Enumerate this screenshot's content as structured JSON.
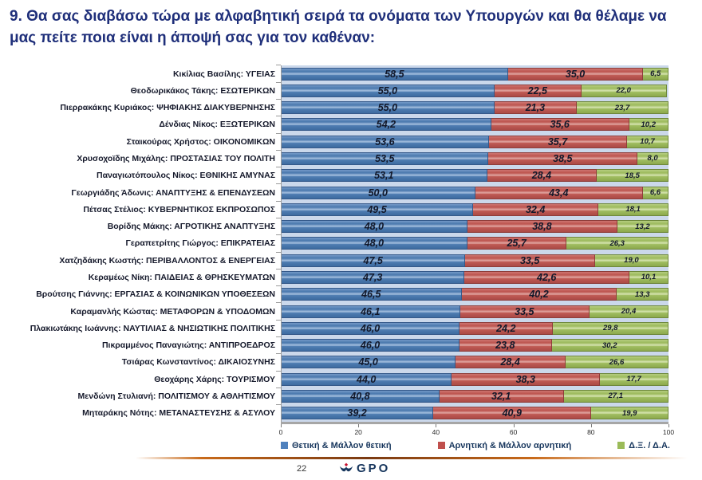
{
  "title": "9. Θα σας διαβάσω τώρα με αλφαβητική σειρά τα ονόματα των Υπουργών και θα θέλαμε να μας πείτε ποια είναι η άποψή σας για τον καθέναν:",
  "chart_data": {
    "type": "bar",
    "orientation": "horizontal-stacked",
    "title": "",
    "xlabel": "",
    "ylabel": "",
    "xlim": [
      0,
      100
    ],
    "x_ticks": [
      "0",
      "20",
      "40",
      "60",
      "80",
      "100"
    ],
    "grid": false,
    "legend_position": "bottom",
    "categories": [
      "Κικίλιας Βασίλης: ΥΓΕΙΑΣ",
      "Θεοδωρικάκος Τάκης: ΕΣΩΤΕΡΙΚΩΝ",
      "Πιερρακάκης Κυριάκος: ΨΗΦΙΑΚΗΣ ΔΙΑΚΥΒΕΡΝΗΣΗΣ",
      "Δένδιας Νίκος: ΕΞΩΤΕΡΙΚΩΝ",
      "Σταικούρας Χρήστος: ΟΙΚΟΝΟΜΙΚΩΝ",
      "Χρυσοχοϊδης Μιχάλης: ΠΡΟΣΤΑΣΙΑΣ ΤΟΥ ΠΟΛΙΤΗ",
      "Παναγιωτόπουλος Νίκος: ΕΘΝΙΚΗΣ ΑΜΥΝΑΣ",
      "Γεωργιάδης Άδωνις: ΑΝΑΠΤΥΞΗΣ & ΕΠΕΝΔΥΣΕΩΝ",
      "Πέτσας Στέλιος: ΚΥΒΕΡΝΗΤΙΚΟΣ ΕΚΠΡΟΣΩΠΟΣ",
      "Βορίδης Μάκης: ΑΓΡΟΤΙΚΗΣ ΑΝΑΠΤΥΞΗΣ",
      "Γεραπετρίτης Γιώργος: ΕΠΙΚΡΑΤΕΙΑΣ",
      "Χατζηδάκης Κωστής: ΠΕΡΙΒΑΛΛΟΝΤΟΣ & ΕΝΕΡΓΕΙΑΣ",
      "Κεραμέως Νίκη: ΠΑΙΔΕΙΑΣ & ΘΡΗΣΚΕΥΜΑΤΩΝ",
      "Βρούτσης Γιάννης: ΕΡΓΑΣΙΑΣ & ΚΟΙΝΩΝΙΚΩΝ ΥΠΟΘΕΣΕΩΝ",
      "Καραμανλής Κώστας: ΜΕΤΑΦΟΡΩΝ & ΥΠΟΔΟΜΩΝ",
      "Πλακιωτάκης Ιωάννης: ΝΑΥΤΙΛΙΑΣ & ΝΗΣΙΩΤΙΚΗΣ ΠΟΛΙΤΙΚΗΣ",
      "Πικραμμένος Παναγιώτης: ΑΝΤΙΠΡΟΕΔΡΟΣ",
      "Τσιάρας Κωνσταντίνος: ΔΙΚΑΙΟΣΥΝΗΣ",
      "Θεοχάρης Χάρης: ΤΟΥΡΙΣΜΟΥ",
      "Μενδώνη Στυλιανή: ΠΟΛΙΤΙΣΜΟΥ & ΑΘΛΗΤΙΣΜΟΥ",
      "Μηταράκης Νότης: ΜΕΤΑΝΑΣΤΕΥΣΗΣ & ΑΣΥΛΟΥ"
    ],
    "series": [
      {
        "name": "Θετική & Μάλλον θετική",
        "key": "positive",
        "color": "#4F81BD",
        "values": [
          "58,5",
          "55,0",
          "55,0",
          "54,2",
          "53,6",
          "53,5",
          "53,1",
          "50,0",
          "49,5",
          "48,0",
          "48,0",
          "47,5",
          "47,3",
          "46,5",
          "46,1",
          "46,0",
          "46,0",
          "45,0",
          "44,0",
          "40,8",
          "39,2"
        ]
      },
      {
        "name": "Αρνητική & Μάλλον αρνητική",
        "key": "negative",
        "color": "#C0504D",
        "values": [
          "35,0",
          "22,5",
          "21,3",
          "35,6",
          "35,7",
          "38,5",
          "28,4",
          "43,4",
          "32,4",
          "38,8",
          "25,7",
          "33,5",
          "42,6",
          "40,2",
          "33,5",
          "24,2",
          "23,8",
          "28,4",
          "38,3",
          "32,1",
          "40,9"
        ]
      },
      {
        "name": "Δ.Ξ. / Δ.Α.",
        "key": "dk-na",
        "color": "#9BBB59",
        "values": [
          "6,5",
          "22,0",
          "23,7",
          "10,2",
          "10,7",
          "8,0",
          "18,5",
          "6,6",
          "18,1",
          "13,2",
          "26,3",
          "19,0",
          "10,1",
          "13,3",
          "20,4",
          "29,8",
          "30,2",
          "26,6",
          "17,7",
          "27,1",
          "19,9"
        ]
      }
    ]
  },
  "footer": {
    "page_number": "22",
    "logo_text": "GPO"
  }
}
